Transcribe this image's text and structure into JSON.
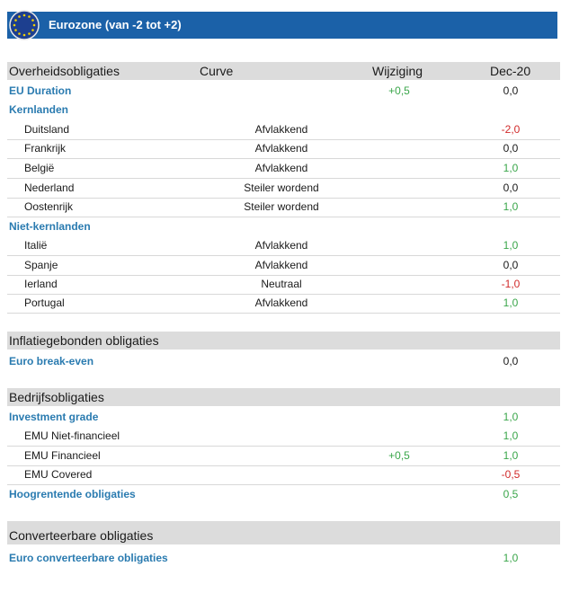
{
  "header": {
    "title": "Eurozone (van -2 tot +2)"
  },
  "columns": {
    "c1": "Overheidsobligaties",
    "c2": "Curve",
    "c3": "Wijziging",
    "c4": "Dec-20"
  },
  "gov": {
    "eu_duration": {
      "label": "EU Duration",
      "change": "+0,5",
      "value": "0,0"
    },
    "core": {
      "label": "Kernlanden"
    },
    "core_rows": [
      {
        "name": "Duitsland",
        "curve": "Afvlakkend",
        "value": "-2,0"
      },
      {
        "name": "Frankrijk",
        "curve": "Afvlakkend",
        "value": "0,0"
      },
      {
        "name": "België",
        "curve": "Afvlakkend",
        "value": "1,0"
      },
      {
        "name": "Nederland",
        "curve": "Steiler wordend",
        "value": "0,0"
      },
      {
        "name": "Oostenrijk",
        "curve": "Steiler wordend",
        "value": "1,0"
      }
    ],
    "noncore": {
      "label": "Niet-kernlanden"
    },
    "noncore_rows": [
      {
        "name": "Italië",
        "curve": "Afvlakkend",
        "value": "1,0"
      },
      {
        "name": "Spanje",
        "curve": "Afvlakkend",
        "value": "0,0"
      },
      {
        "name": "Ierland",
        "curve": "Neutraal",
        "value": "-1,0"
      },
      {
        "name": "Portugal",
        "curve": "Afvlakkend",
        "value": "1,0"
      }
    ]
  },
  "inflation": {
    "title": "Inflatiegebonden obligaties",
    "row": {
      "label": "Euro break-even",
      "value": "0,0"
    }
  },
  "corporate": {
    "title": "Bedrijfsobligaties",
    "ig": {
      "label": "Investment  grade",
      "value": "1,0"
    },
    "rows": [
      {
        "name": "EMU Niet-financieel",
        "change": "",
        "value": "1,0"
      },
      {
        "name": "EMU Financieel",
        "change": "+0,5",
        "value": "1,0"
      },
      {
        "name": "EMU Covered",
        "change": "",
        "value": "-0,5"
      }
    ],
    "hy": {
      "label": "Hoogrentende  obligaties",
      "value": "0,5"
    }
  },
  "convertible": {
    "title": "Converteerbare obligaties",
    "row": {
      "label": "Euro converteerbare  obligaties",
      "value": "1,0"
    }
  },
  "colors": {
    "banner": "#1b61a8",
    "positive": "#3aa64a",
    "negative": "#d12a2a",
    "category": "#2a7bb0"
  }
}
